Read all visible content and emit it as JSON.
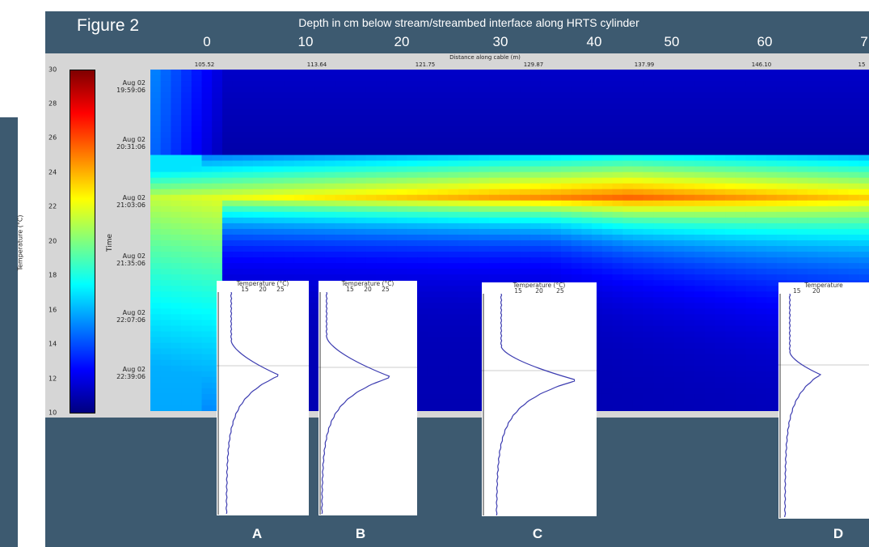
{
  "figure": {
    "title": "Figure 2",
    "top_axis_label": "Depth in cm below stream/streambed interface along HRTS cylinder",
    "top_axis_ticks": [
      "0",
      "10",
      "20",
      "30",
      "40",
      "50",
      "60",
      "7"
    ]
  },
  "chart_data": [
    {
      "type": "heatmap",
      "xlabel": "Distance along cable (m)",
      "x_ticks": [
        "105.52",
        "113.64",
        "121.75",
        "129.87",
        "137.99",
        "146.10",
        "15"
      ],
      "ylabel": "Time",
      "y_ticks": [
        "Aug 02\n19:59:06",
        "Aug 02\n20:31:06",
        "Aug 02\n21:03:06",
        "Aug 02\n21:35:06",
        "Aug 02\n22:07:06",
        "Aug 02\n22:39:06"
      ],
      "colorbar": {
        "label": "Temperature (°C)",
        "range": [
          10,
          30
        ],
        "ticks": [
          "10",
          "12",
          "14",
          "16",
          "18",
          "20",
          "22",
          "24",
          "26",
          "28",
          "30"
        ],
        "colormap": "jet"
      },
      "colors": {
        "jet": [
          "#00007f",
          "#0000ff",
          "#007fff",
          "#00ffff",
          "#7fff7f",
          "#ffff00",
          "#ff7f00",
          "#ff0000",
          "#7f0000"
        ]
      },
      "hot_band": {
        "start_fraction": 0.25,
        "peak_fraction": 0.36,
        "peak_temp": 25.5,
        "peak_position": 0.66
      }
    },
    {
      "type": "line",
      "panels": [
        {
          "letter": "A",
          "header": "Temperature (°C)",
          "ticks": [
            "15",
            "20",
            "25"
          ]
        },
        {
          "letter": "B",
          "header": "Temperature (°C)",
          "ticks": [
            "15",
            "20",
            "25"
          ]
        },
        {
          "letter": "C",
          "header": "Temperature (°C)",
          "ticks": [
            "15",
            "20",
            "25"
          ]
        },
        {
          "letter": "D",
          "header": "Temperature",
          "ticks": [
            "15",
            "20"
          ]
        }
      ]
    }
  ]
}
